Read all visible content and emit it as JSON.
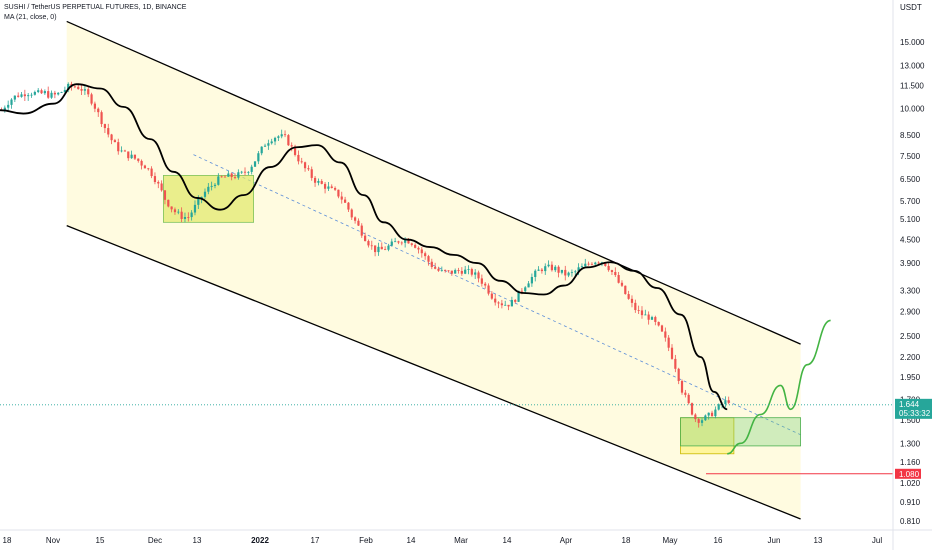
{
  "legend": {
    "line1": "SUSHI / TetherUS PERPETUAL FUTURES, 1D, BINANCE",
    "line2": "MA (21, close, 0)"
  },
  "price_axis": {
    "unit": "USDT",
    "ticks": [
      "15.000",
      "13.000",
      "11.500",
      "10.000",
      "8.500",
      "7.500",
      "6.500",
      "5.700",
      "5.100",
      "4.500",
      "3.900",
      "3.300",
      "2.900",
      "2.500",
      "2.200",
      "1.950",
      "1.700",
      "1.500",
      "1.300",
      "1.160",
      "1.020",
      "0.910",
      "0.810"
    ],
    "last_price": "1.644",
    "countdown": "05:33:32",
    "support_price": "1.080"
  },
  "time_axis": {
    "ticks": [
      "18",
      "Nov",
      "15",
      "Dec",
      "13",
      "2022",
      "17",
      "Feb",
      "14",
      "Mar",
      "14",
      "Apr",
      "18",
      "May",
      "16",
      "Jun",
      "13",
      "Jul"
    ]
  },
  "colors": {
    "up": "#26a69a",
    "down": "#ef5350",
    "ma": "#000000",
    "channel_fill": "#fffbe0",
    "box_yellow": "#fff3a0",
    "box_green": "#a7e6a7",
    "projection": "#43b443",
    "support": "#f23645",
    "price_label": "#26a69a",
    "dashed_mid": "#5b8dd8"
  },
  "chart_data": {
    "type": "candlestick",
    "title": "SUSHI / TetherUS PERPETUAL FUTURES, 1D, BINANCE",
    "scale": "log",
    "ylim": [
      0.77,
      18.0
    ],
    "y_unit": "USDT",
    "x_range": [
      "2021-10-15",
      "2022-07-07"
    ],
    "series": [
      {
        "name": "MA (21, close, 0)",
        "points": [
          [
            "2021-10-15",
            9.9
          ],
          [
            "2021-10-22",
            9.7
          ],
          [
            "2021-10-31",
            10.3
          ],
          [
            "2021-11-07",
            11.6
          ],
          [
            "2021-11-14",
            11.3
          ],
          [
            "2021-11-21",
            10.1
          ],
          [
            "2021-11-29",
            8.3
          ],
          [
            "2021-12-06",
            6.8
          ],
          [
            "2021-12-13",
            5.8
          ],
          [
            "2021-12-20",
            5.4
          ],
          [
            "2021-12-27",
            5.9
          ],
          [
            "2022-01-04",
            7.0
          ],
          [
            "2022-01-12",
            7.9
          ],
          [
            "2022-01-18",
            8.0
          ],
          [
            "2022-01-25",
            7.2
          ],
          [
            "2022-02-01",
            5.9
          ],
          [
            "2022-02-07",
            5.0
          ],
          [
            "2022-02-14",
            4.5
          ],
          [
            "2022-02-21",
            4.3
          ],
          [
            "2022-02-28",
            4.1
          ],
          [
            "2022-03-07",
            3.9
          ],
          [
            "2022-03-14",
            3.5
          ],
          [
            "2022-03-21",
            3.25
          ],
          [
            "2022-03-27",
            3.22
          ],
          [
            "2022-04-02",
            3.4
          ],
          [
            "2022-04-09",
            3.8
          ],
          [
            "2022-04-16",
            3.92
          ],
          [
            "2022-04-23",
            3.72
          ],
          [
            "2022-04-30",
            3.35
          ],
          [
            "2022-05-07",
            2.85
          ],
          [
            "2022-05-13",
            2.2
          ],
          [
            "2022-05-17",
            1.78
          ],
          [
            "2022-05-21",
            1.6
          ]
        ]
      },
      {
        "name": "Projection",
        "points": [
          [
            "2022-05-21",
            1.22
          ],
          [
            "2022-05-25",
            1.3
          ],
          [
            "2022-05-31",
            1.55
          ],
          [
            "2022-06-06",
            1.85
          ],
          [
            "2022-06-09",
            1.6
          ],
          [
            "2022-06-14",
            2.1
          ],
          [
            "2022-06-21",
            2.75
          ]
        ]
      }
    ],
    "channel": {
      "upper": [
        [
          "2021-11-04",
          17.0
        ],
        [
          "2022-06-12",
          2.38
        ]
      ],
      "lower": [
        [
          "2021-11-04",
          4.9
        ],
        [
          "2022-06-12",
          0.82
        ]
      ],
      "mid_dashed": [
        [
          "2021-12-12",
          7.55
        ],
        [
          "2022-06-12",
          1.37
        ]
      ]
    },
    "zones": [
      {
        "from": "2021-12-03",
        "to": "2021-12-30",
        "low": 5.0,
        "high": 6.65,
        "style": "green-box"
      },
      {
        "from": "2022-05-07",
        "to": "2022-05-23",
        "low": 1.22,
        "high": 1.52,
        "style": "yellow-box"
      },
      {
        "from": "2022-05-07",
        "to": "2022-06-12",
        "low": 1.28,
        "high": 1.52,
        "style": "green-box"
      }
    ],
    "levels": [
      {
        "price": 1.644,
        "style": "dotted",
        "label": "1.644"
      },
      {
        "price": 1.08,
        "style": "solid",
        "label": "1.080"
      }
    ]
  }
}
